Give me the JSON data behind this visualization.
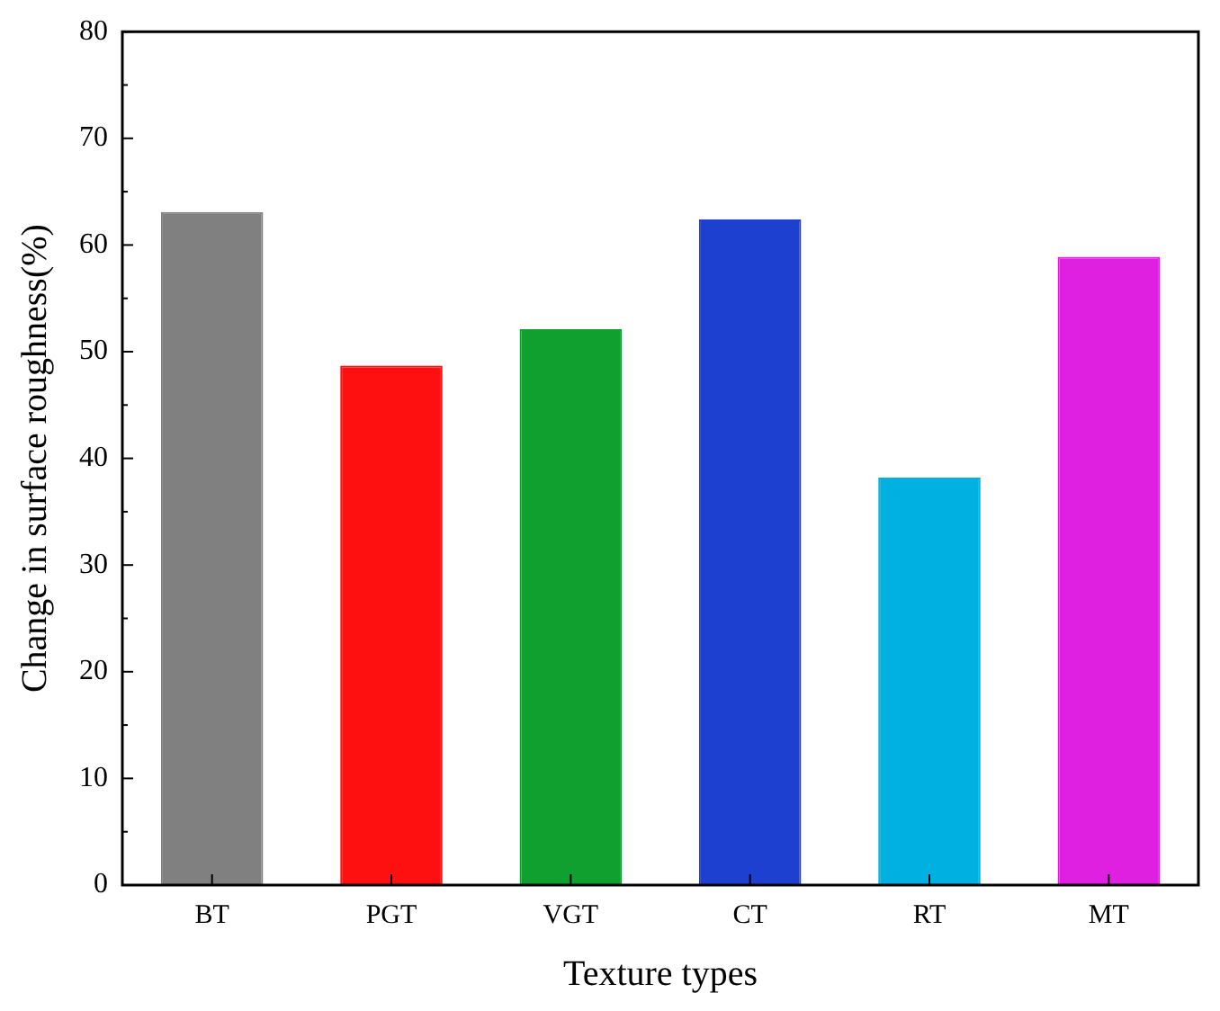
{
  "chart_data": {
    "type": "bar",
    "xlabel": "Texture types",
    "ylabel": "Change in surface roughness(%)",
    "categories": [
      "BT",
      "PGT",
      "VGT",
      "CT",
      "RT",
      "MT"
    ],
    "values": [
      63.1,
      48.7,
      52.1,
      62.4,
      38.2,
      58.9
    ],
    "colors": [
      "#808080",
      "#ff1010",
      "#10a030",
      "#1e40d0",
      "#00b0e0",
      "#e020e0"
    ],
    "ylim": [
      0,
      80
    ],
    "yticks": [
      0,
      10,
      20,
      30,
      40,
      50,
      60,
      70,
      80
    ],
    "grid": false,
    "legend": false
  }
}
